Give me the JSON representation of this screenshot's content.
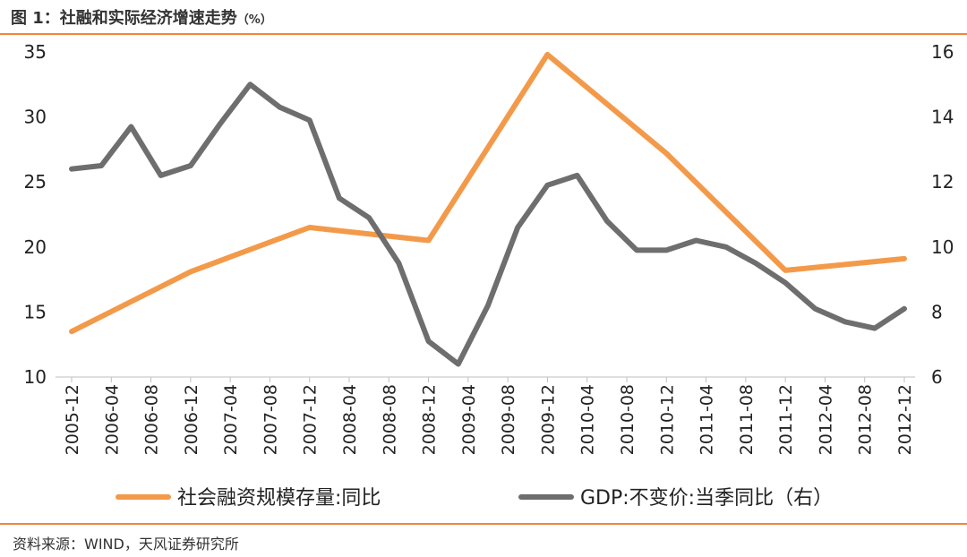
{
  "header": {
    "title": "图 1：社融和实际经济增速走势",
    "unit": "（%）"
  },
  "footer": {
    "source": "资料来源：WIND，天风证券研究所"
  },
  "colors": {
    "accent": "#f0873a",
    "series_orange": "#f39a4a",
    "series_gray": "#6e6e6e"
  },
  "chart_data": {
    "type": "line",
    "title": "社融和实际经济增速走势",
    "categories": [
      "2005-12",
      "2006-04",
      "2006-08",
      "2006-12",
      "2007-04",
      "2007-08",
      "2007-12",
      "2008-04",
      "2008-08",
      "2008-12",
      "2009-04",
      "2009-08",
      "2009-12",
      "2010-04",
      "2010-08",
      "2010-12",
      "2011-04",
      "2011-08",
      "2011-12",
      "2012-04",
      "2012-08",
      "2012-12"
    ],
    "y_left": {
      "min": 10,
      "max": 35,
      "ticks": [
        10,
        15,
        20,
        25,
        30,
        35
      ]
    },
    "y_right": {
      "min": 6,
      "max": 16,
      "ticks": [
        6,
        8,
        10,
        12,
        14,
        16
      ]
    },
    "series": [
      {
        "name": "社会融资规模存量:同比",
        "axis": "left",
        "color": "#f39a4a",
        "x": [
          0,
          3,
          6,
          9,
          12,
          15,
          18,
          21
        ],
        "values": [
          13.5,
          18.1,
          21.5,
          20.5,
          34.8,
          27.2,
          18.2,
          19.1
        ]
      },
      {
        "name": "GDP:不变价:当季同比（右）",
        "axis": "right",
        "color": "#6e6e6e",
        "x": [
          0,
          0.75,
          1.5,
          2.25,
          3,
          3.75,
          4.5,
          5.25,
          6,
          6.75,
          7.5,
          8.25,
          9,
          9.75,
          10.5,
          11.25,
          12,
          12.75,
          13.5,
          14.25,
          15,
          15.75,
          16.5,
          17.25,
          18,
          18.75,
          19.5,
          20.25,
          21
        ],
        "values": [
          12.4,
          12.5,
          13.7,
          12.2,
          12.5,
          13.8,
          15.0,
          14.3,
          13.9,
          11.5,
          10.9,
          9.5,
          7.1,
          6.4,
          8.2,
          10.6,
          11.9,
          12.2,
          10.8,
          9.9,
          9.9,
          10.2,
          10.0,
          9.5,
          8.9,
          8.1,
          7.7,
          7.5,
          8.1
        ]
      }
    ],
    "legend": {
      "position": "bottom"
    }
  }
}
